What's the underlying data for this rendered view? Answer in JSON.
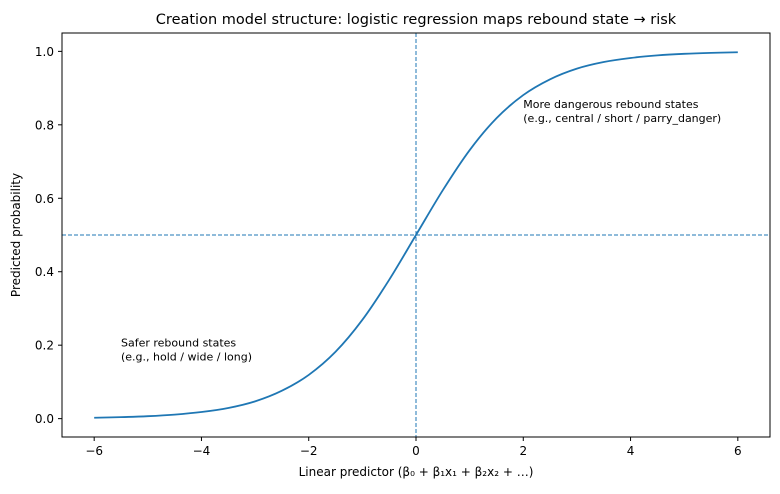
{
  "chart_data": {
    "type": "line",
    "title": "Creation model structure: logistic regression maps rebound state → risk",
    "xlabel": "Linear predictor  (β₀ + β₁x₁ + β₂x₂ + …)",
    "ylabel": "Predicted probability",
    "xlim": [
      -6.6,
      6.6
    ],
    "ylim": [
      -0.05,
      1.05
    ],
    "xticks": [
      -6,
      -4,
      -2,
      0,
      2,
      4,
      6
    ],
    "xtick_labels": [
      "−6",
      "−4",
      "−2",
      "0",
      "2",
      "4",
      "6"
    ],
    "yticks": [
      0.0,
      0.2,
      0.4,
      0.6,
      0.8,
      1.0
    ],
    "ytick_labels": [
      "0.0",
      "0.2",
      "0.4",
      "0.6",
      "0.8",
      "1.0"
    ],
    "grid": false,
    "series": [
      {
        "name": "logistic curve",
        "color": "#1f77b4",
        "x": [
          -6,
          -5.5,
          -5,
          -4.5,
          -4,
          -3.5,
          -3,
          -2.5,
          -2,
          -1.5,
          -1,
          -0.5,
          0,
          0.5,
          1,
          1.5,
          2,
          2.5,
          3,
          3.5,
          4,
          4.5,
          5,
          5.5,
          6
        ],
        "y": [
          0.0025,
          0.0041,
          0.0067,
          0.011,
          0.018,
          0.029,
          0.047,
          0.076,
          0.119,
          0.182,
          0.269,
          0.378,
          0.5,
          0.622,
          0.731,
          0.818,
          0.881,
          0.924,
          0.953,
          0.971,
          0.982,
          0.989,
          0.9933,
          0.9959,
          0.9975
        ]
      }
    ],
    "reference_lines": [
      {
        "orientation": "vertical",
        "value": 0,
        "style": "dashed",
        "color": "#1f77b4"
      },
      {
        "orientation": "horizontal",
        "value": 0.5,
        "style": "dashed",
        "color": "#1f77b4"
      }
    ],
    "annotations": [
      {
        "x": -5.5,
        "y": 0.15,
        "lines": [
          "Safer rebound states",
          "(e.g., hold / wide / long)"
        ]
      },
      {
        "x": 2,
        "y": 0.8,
        "lines": [
          "More dangerous rebound states",
          "(e.g., central / short / parry_danger)"
        ]
      }
    ]
  }
}
